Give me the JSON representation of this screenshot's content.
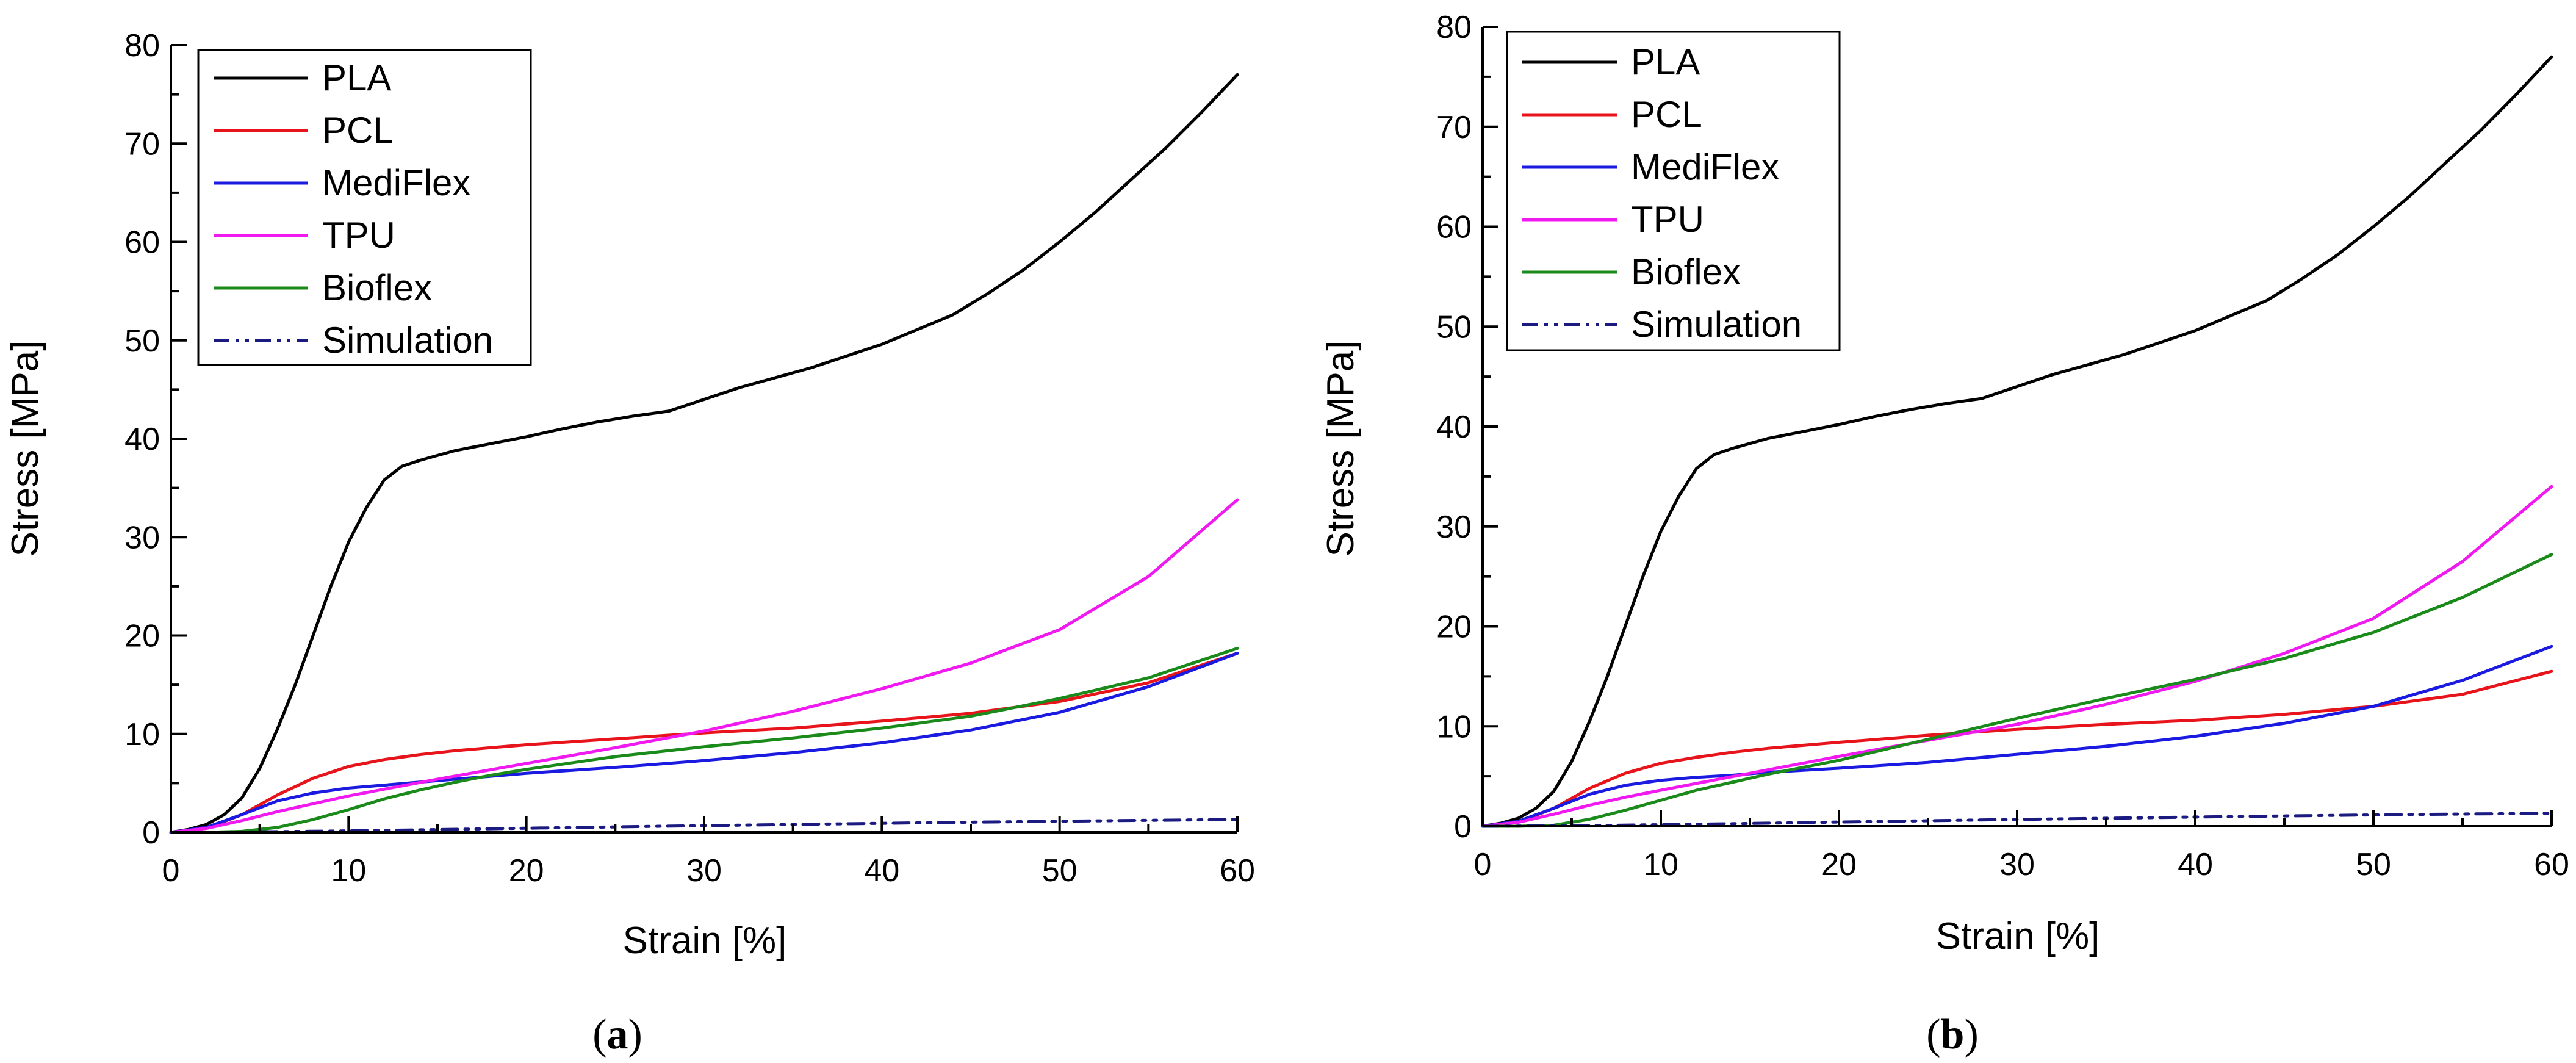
{
  "figure": {
    "panels": [
      {
        "caption_letter": "a"
      },
      {
        "caption_letter": "b"
      }
    ]
  },
  "colors": {
    "PLA": "#000000",
    "PCL": "#e8141c",
    "MediFlex": "#1a1ae0",
    "TPU": "#f01af0",
    "Bioflex": "#1a8a1a",
    "Simulation": "#1a1a80",
    "axis": "#000000"
  },
  "chart_data": [
    {
      "type": "line",
      "xlabel": "Strain [%]",
      "ylabel": "Stress [MPa]",
      "xlim": [
        0,
        60
      ],
      "ylim": [
        0,
        80
      ],
      "xticks": [
        0,
        10,
        20,
        30,
        40,
        50,
        60
      ],
      "yticks": [
        0,
        10,
        20,
        30,
        40,
        50,
        60,
        70,
        80
      ],
      "grid": false,
      "legend_position": "top-left",
      "series": [
        {
          "name": "PLA",
          "x": [
            0,
            1,
            2,
            3,
            4,
            5,
            6,
            7,
            8,
            9,
            10,
            11,
            12,
            13,
            14,
            15,
            16,
            18,
            20,
            22,
            24,
            26,
            28,
            30,
            32,
            34,
            36,
            38,
            40,
            42,
            44,
            46,
            48,
            50,
            52,
            54,
            56,
            58,
            60
          ],
          "y": [
            0,
            0.3,
            0.8,
            1.8,
            3.5,
            6.5,
            10.5,
            15,
            20,
            25,
            29.5,
            33,
            35.8,
            37.2,
            37.8,
            38.3,
            38.8,
            39.5,
            40.2,
            41,
            41.7,
            42.3,
            42.8,
            44,
            45.2,
            46.2,
            47.2,
            48.4,
            49.6,
            51.1,
            52.6,
            54.8,
            57.2,
            60,
            63,
            66.3,
            69.6,
            73.2,
            77
          ]
        },
        {
          "name": "PCL",
          "x": [
            0,
            2,
            4,
            6,
            8,
            10,
            12,
            14,
            16,
            18,
            20,
            25,
            30,
            35,
            40,
            45,
            50,
            55,
            60
          ],
          "y": [
            0,
            0.4,
            1.8,
            3.8,
            5.5,
            6.7,
            7.4,
            7.9,
            8.3,
            8.6,
            8.9,
            9.5,
            10.1,
            10.6,
            11.3,
            12.1,
            13.3,
            15.2,
            18.2
          ]
        },
        {
          "name": "MediFlex",
          "x": [
            0,
            2,
            4,
            6,
            8,
            10,
            12,
            14,
            16,
            18,
            20,
            25,
            30,
            35,
            40,
            45,
            50,
            55,
            60
          ],
          "y": [
            0,
            0.5,
            1.8,
            3.2,
            4,
            4.5,
            4.8,
            5.1,
            5.4,
            5.7,
            6,
            6.6,
            7.3,
            8.1,
            9.1,
            10.4,
            12.2,
            14.8,
            18.2
          ]
        },
        {
          "name": "TPU",
          "x": [
            0,
            2,
            4,
            6,
            8,
            10,
            15,
            20,
            25,
            30,
            35,
            40,
            45,
            50,
            55,
            60
          ],
          "y": [
            0,
            0.4,
            1.2,
            2.1,
            2.9,
            3.7,
            5.4,
            7,
            8.6,
            10.3,
            12.3,
            14.6,
            17.2,
            20.6,
            26,
            33.8
          ]
        },
        {
          "name": "Bioflex",
          "x": [
            0,
            2,
            4,
            6,
            8,
            10,
            12,
            14,
            16,
            18,
            20,
            25,
            30,
            35,
            40,
            45,
            50,
            55,
            60
          ],
          "y": [
            0,
            0,
            0.1,
            0.5,
            1.3,
            2.3,
            3.4,
            4.3,
            5.1,
            5.8,
            6.4,
            7.7,
            8.7,
            9.6,
            10.6,
            11.8,
            13.6,
            15.7,
            18.7
          ]
        },
        {
          "name": "Simulation",
          "x": [
            0,
            5,
            10,
            15,
            20,
            25,
            30,
            35,
            40,
            45,
            50,
            55,
            60
          ],
          "y": [
            0,
            0.05,
            0.15,
            0.28,
            0.42,
            0.55,
            0.68,
            0.8,
            0.92,
            1.03,
            1.13,
            1.22,
            1.3
          ]
        }
      ]
    },
    {
      "type": "line",
      "xlabel": "Strain [%]",
      "ylabel": "Stress [MPa]",
      "xlim": [
        0,
        60
      ],
      "ylim": [
        0,
        80
      ],
      "xticks": [
        0,
        10,
        20,
        30,
        40,
        50,
        60
      ],
      "yticks": [
        0,
        10,
        20,
        30,
        40,
        50,
        60,
        70,
        80
      ],
      "grid": false,
      "legend_position": "top-left",
      "series": [
        {
          "name": "PLA",
          "x": [
            0,
            1,
            2,
            3,
            4,
            5,
            6,
            7,
            8,
            9,
            10,
            11,
            12,
            13,
            14,
            15,
            16,
            18,
            20,
            22,
            24,
            26,
            28,
            30,
            32,
            34,
            36,
            38,
            40,
            42,
            44,
            46,
            48,
            50,
            52,
            54,
            56,
            58,
            60
          ],
          "y": [
            0,
            0.3,
            0.8,
            1.8,
            3.5,
            6.5,
            10.5,
            15,
            20,
            25,
            29.5,
            33,
            35.8,
            37.2,
            37.8,
            38.3,
            38.8,
            39.5,
            40.2,
            41,
            41.7,
            42.3,
            42.8,
            44,
            45.2,
            46.2,
            47.2,
            48.4,
            49.6,
            51.1,
            52.6,
            54.8,
            57.2,
            60,
            63,
            66.3,
            69.6,
            73.2,
            77
          ]
        },
        {
          "name": "PCL",
          "x": [
            0,
            2,
            4,
            6,
            8,
            10,
            12,
            14,
            16,
            18,
            20,
            25,
            30,
            35,
            40,
            45,
            50,
            55,
            60
          ],
          "y": [
            0,
            0.4,
            1.8,
            3.8,
            5.3,
            6.3,
            6.9,
            7.4,
            7.8,
            8.1,
            8.4,
            9.1,
            9.7,
            10.2,
            10.6,
            11.2,
            12,
            13.2,
            15.5
          ]
        },
        {
          "name": "MediFlex",
          "x": [
            0,
            2,
            4,
            6,
            8,
            10,
            12,
            14,
            16,
            18,
            20,
            25,
            30,
            35,
            40,
            45,
            50,
            55,
            60
          ],
          "y": [
            0,
            0.5,
            1.8,
            3.2,
            4.1,
            4.6,
            4.9,
            5.1,
            5.4,
            5.6,
            5.8,
            6.4,
            7.2,
            8,
            9,
            10.3,
            12,
            14.6,
            18
          ]
        },
        {
          "name": "TPU",
          "x": [
            0,
            2,
            4,
            6,
            8,
            10,
            15,
            20,
            25,
            30,
            35,
            40,
            45,
            50,
            55,
            60
          ],
          "y": [
            0,
            0.4,
            1.2,
            2.1,
            2.9,
            3.6,
            5.3,
            7,
            8.6,
            10.2,
            12.2,
            14.5,
            17.3,
            20.8,
            26.5,
            34
          ]
        },
        {
          "name": "Bioflex",
          "x": [
            0,
            2,
            4,
            6,
            8,
            10,
            12,
            14,
            16,
            18,
            20,
            25,
            30,
            35,
            40,
            45,
            50,
            55,
            60
          ],
          "y": [
            0,
            0,
            0.1,
            0.7,
            1.6,
            2.6,
            3.6,
            4.4,
            5.2,
            5.9,
            6.6,
            8.7,
            10.8,
            12.8,
            14.7,
            16.8,
            19.4,
            22.9,
            27.2
          ]
        },
        {
          "name": "Simulation",
          "x": [
            0,
            5,
            10,
            15,
            20,
            25,
            30,
            35,
            40,
            45,
            50,
            55,
            60
          ],
          "y": [
            0,
            0.05,
            0.15,
            0.28,
            0.42,
            0.55,
            0.68,
            0.8,
            0.92,
            1.03,
            1.13,
            1.22,
            1.3
          ]
        }
      ]
    }
  ]
}
